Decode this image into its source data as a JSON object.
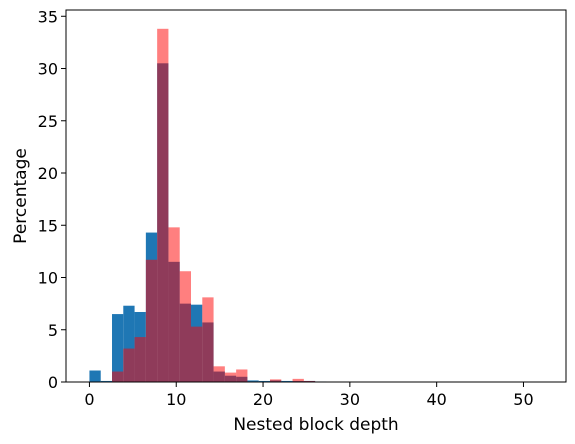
{
  "chart_data": {
    "type": "bar",
    "subtype": "overlaid-histogram",
    "title": "",
    "xlabel": "Nested block depth",
    "ylabel": "Percentage",
    "xlim": [
      -2.7,
      54.9
    ],
    "ylim": [
      0,
      35.6
    ],
    "xticks": [
      0,
      10,
      20,
      30,
      40,
      50
    ],
    "yticks": [
      0,
      5,
      10,
      15,
      20,
      25,
      30,
      35
    ],
    "grid": false,
    "legend": "none",
    "bin_width": 1.3,
    "series": [
      {
        "color": "#1f77b4",
        "opacity": 1,
        "bins": [
          {
            "x0": 0.0,
            "y": 1.1
          },
          {
            "x0": 1.3,
            "y": 0.1
          },
          {
            "x0": 2.6,
            "y": 6.5
          },
          {
            "x0": 3.9,
            "y": 7.3
          },
          {
            "x0": 5.2,
            "y": 6.7
          },
          {
            "x0": 6.5,
            "y": 14.3
          },
          {
            "x0": 7.8,
            "y": 30.5
          },
          {
            "x0": 9.1,
            "y": 11.5
          },
          {
            "x0": 10.4,
            "y": 7.5
          },
          {
            "x0": 11.7,
            "y": 7.4
          },
          {
            "x0": 13.0,
            "y": 5.7
          },
          {
            "x0": 14.3,
            "y": 1.0
          },
          {
            "x0": 15.6,
            "y": 0.6
          },
          {
            "x0": 16.9,
            "y": 0.5
          },
          {
            "x0": 18.2,
            "y": 0.15
          },
          {
            "x0": 19.5,
            "y": 0.1
          },
          {
            "x0": 20.8,
            "y": 0.15
          },
          {
            "x0": 22.1,
            "y": 0.1
          },
          {
            "x0": 23.4,
            "y": 0.1
          },
          {
            "x0": 24.7,
            "y": 0.1
          },
          {
            "x0": 26.0,
            "y": 0.05
          }
        ]
      },
      {
        "color": "#ff0000",
        "opacity": 0.5,
        "bins": [
          {
            "x0": 2.6,
            "y": 1.0
          },
          {
            "x0": 3.9,
            "y": 3.2
          },
          {
            "x0": 5.2,
            "y": 4.3
          },
          {
            "x0": 6.5,
            "y": 11.7
          },
          {
            "x0": 7.8,
            "y": 33.8
          },
          {
            "x0": 9.1,
            "y": 14.8
          },
          {
            "x0": 10.4,
            "y": 10.6
          },
          {
            "x0": 11.7,
            "y": 5.3
          },
          {
            "x0": 13.0,
            "y": 8.1
          },
          {
            "x0": 14.3,
            "y": 1.5
          },
          {
            "x0": 15.6,
            "y": 0.9
          },
          {
            "x0": 16.9,
            "y": 1.2
          },
          {
            "x0": 20.8,
            "y": 0.25
          },
          {
            "x0": 23.4,
            "y": 0.3
          },
          {
            "x0": 24.7,
            "y": 0.1
          }
        ]
      }
    ]
  }
}
